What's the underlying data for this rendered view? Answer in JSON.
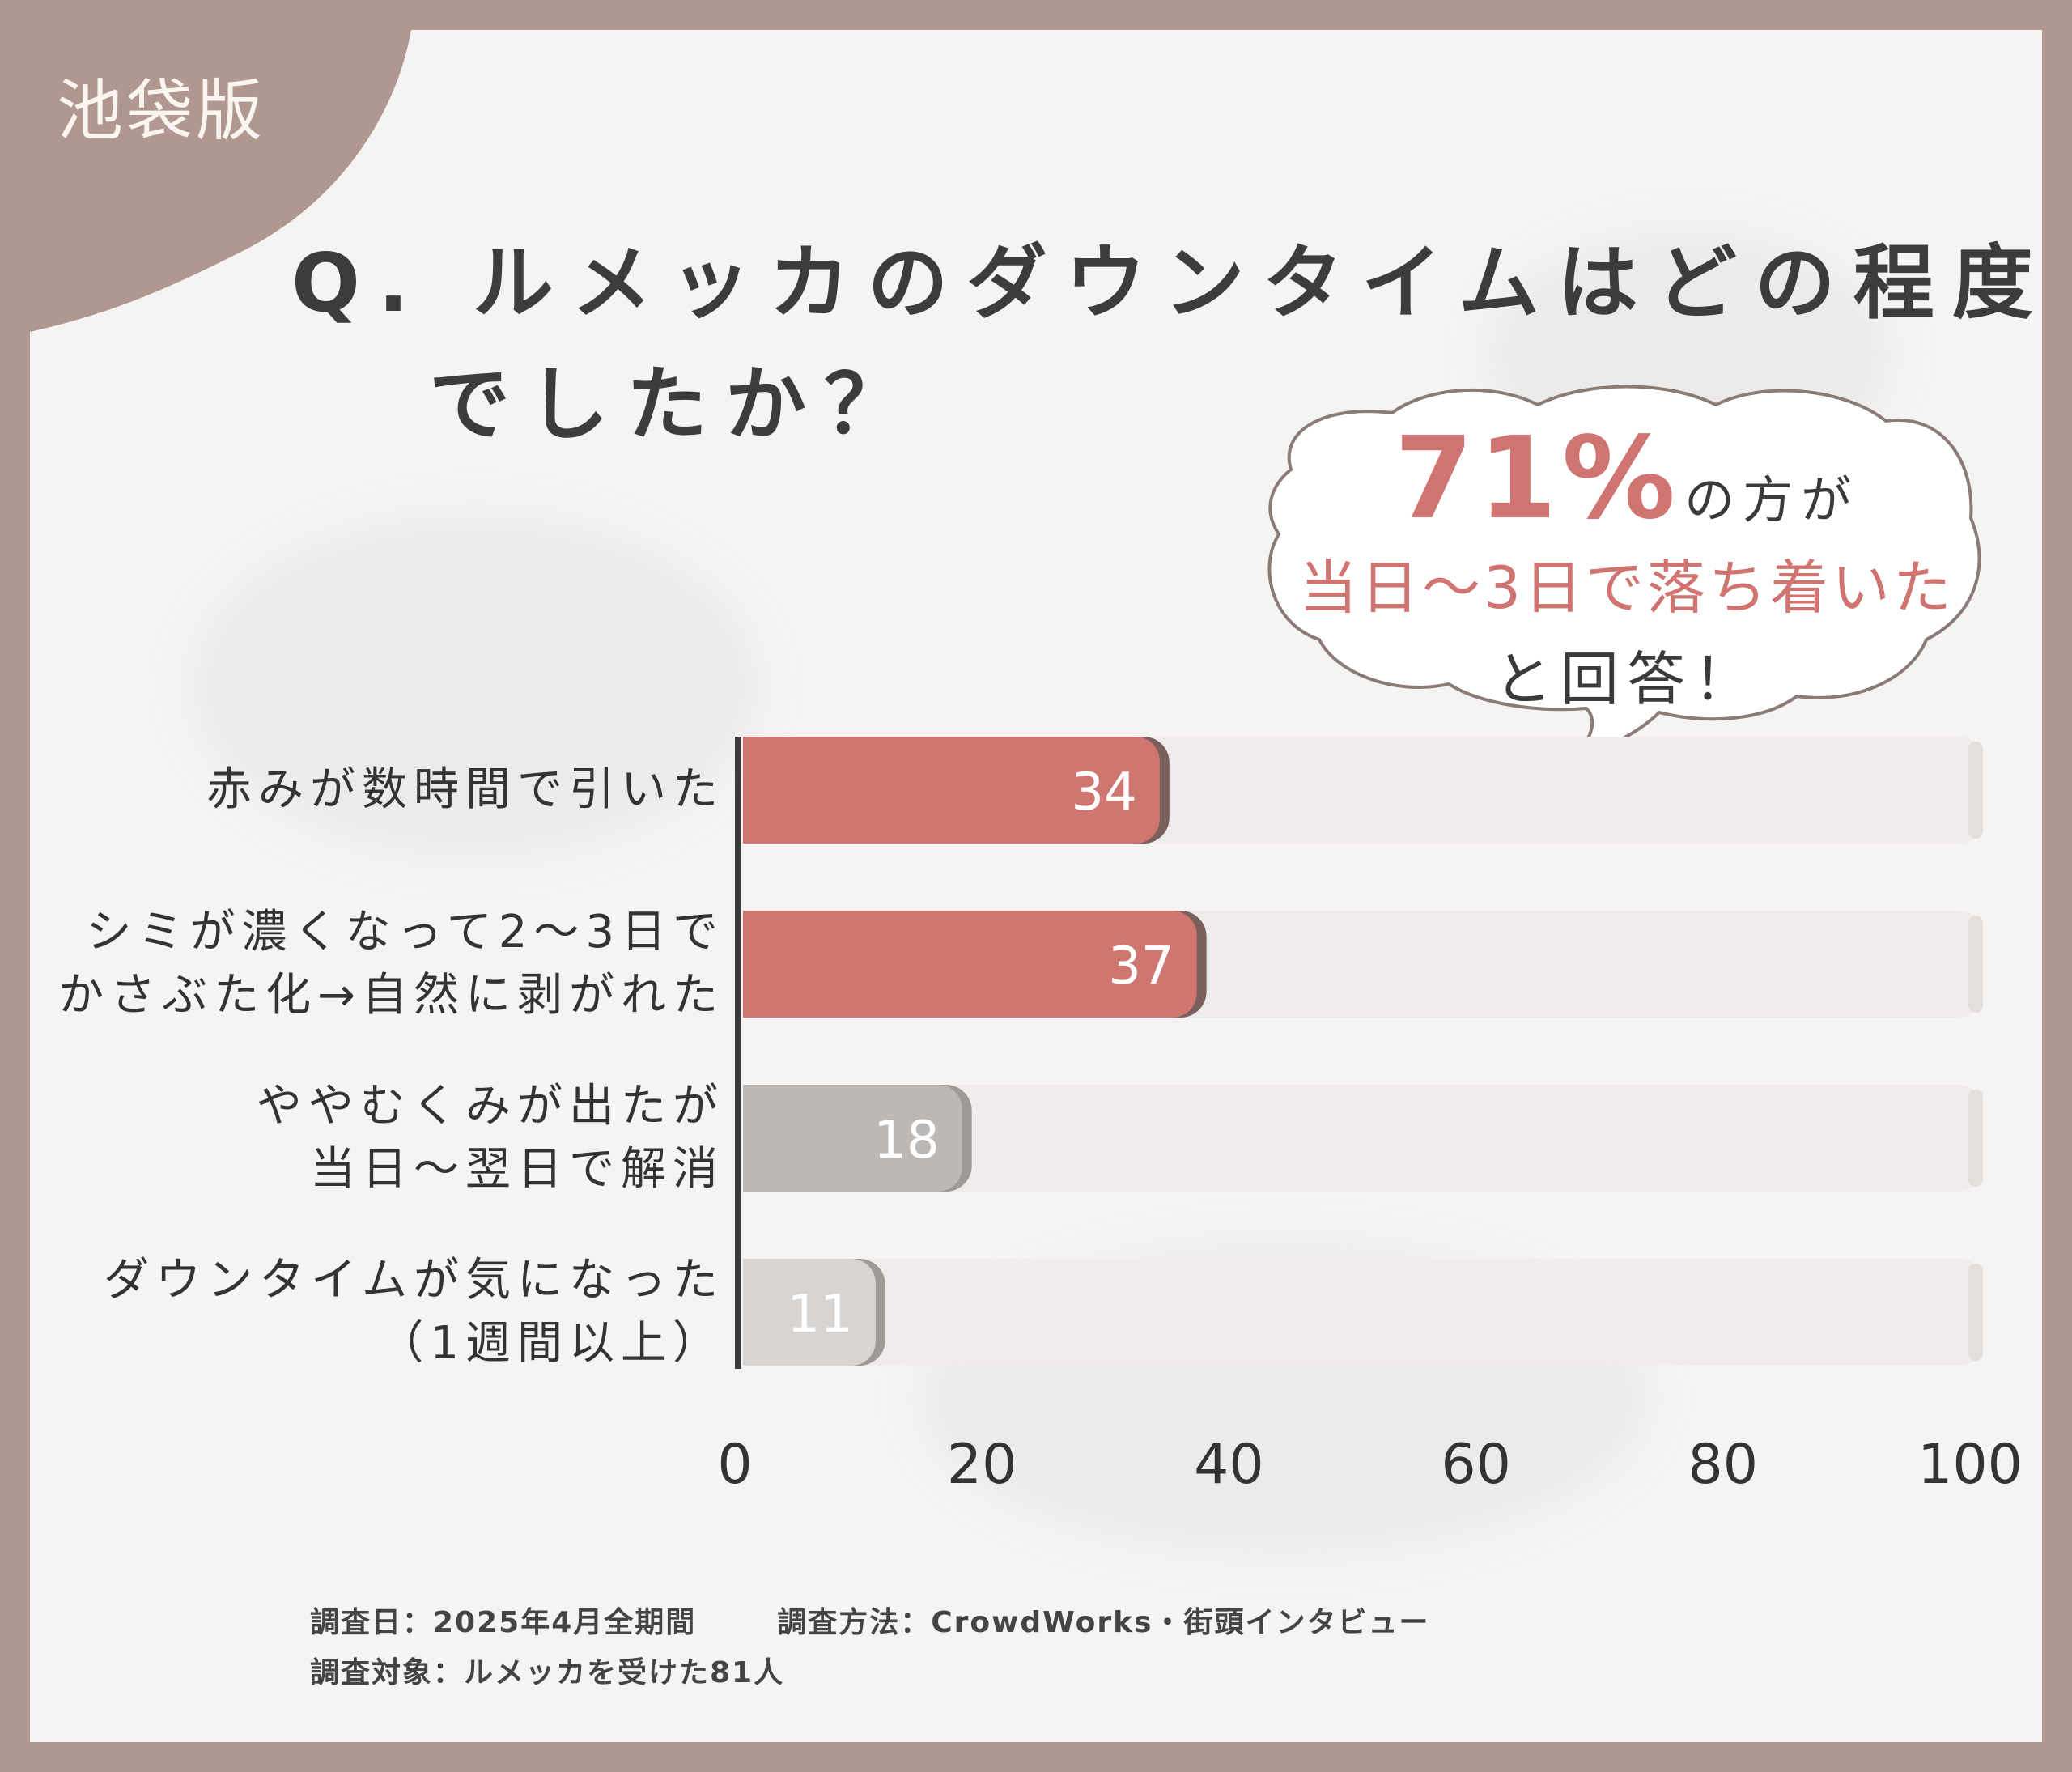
{
  "region_tab": "池袋版",
  "title": {
    "line1": "Q. ルメッカのダウンタイムはどの程度",
    "line2": "でしたか？"
  },
  "bubble": {
    "percent": "71%",
    "suffix": "の方が",
    "line2": "当日〜3日で落ち着いた",
    "line3": "と回答！"
  },
  "chart_data": {
    "type": "bar",
    "orientation": "horizontal",
    "categories": [
      [
        "赤みが数時間で引いた"
      ],
      [
        "シミが濃くなって2〜3日で",
        "かさぶた化→自然に剥がれた"
      ],
      [
        "ややむくみが出たが",
        "当日〜翌日で解消"
      ],
      [
        "ダウンタイムが気になった",
        "（1週間以上）"
      ]
    ],
    "values": [
      34,
      37,
      18,
      11
    ],
    "value_labels": [
      "34",
      "37",
      "18",
      "11"
    ],
    "bar_colors": [
      "#cf7670",
      "#cf7670",
      "#bcb8b6",
      "#d7d4d2"
    ],
    "xlim": [
      0,
      100
    ],
    "xticks": [
      "0",
      "20",
      "40",
      "60",
      "80",
      "100"
    ],
    "xlabel": "",
    "ylabel": "",
    "grid": false
  },
  "footer": {
    "survey_date": "調査日：2025年4月全期間",
    "survey_method": "調査方法：CrowdWorks・街頭インタビュー",
    "survey_target": "調査対象：ルメッカを受けた81人"
  },
  "colors": {
    "frame": "#b09890",
    "accent": "#cf7470",
    "card": "#f5f4f3",
    "track": "#efeceb"
  }
}
